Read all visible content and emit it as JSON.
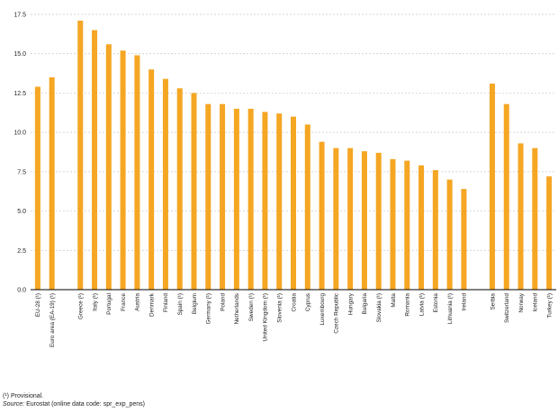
{
  "chart_data": {
    "type": "bar",
    "title": "",
    "xlabel": "",
    "ylabel": "",
    "ylim": [
      0,
      17.5
    ],
    "yticks": [
      "0.0",
      "2.5",
      "5.0",
      "7.5",
      "10.0",
      "12.5",
      "15.0",
      "17.5"
    ],
    "grid": "horizontal-dashed",
    "legend": "none",
    "categories": [
      "EU-28 (¹)",
      "Euro area (EA-19) (¹)",
      "",
      "Greece (¹)",
      "Italy (¹)",
      "Portugal",
      "France",
      "Austria",
      "Denmark",
      "Finland",
      "Spain (¹)",
      "Belgium",
      "Germany (¹)",
      "Poland",
      "Netherlands",
      "Sweden (¹)",
      "United Kingdom (¹)",
      "Slovenia (¹)",
      "Croatia",
      "Cyprus",
      "Luxembourg",
      "Czech Republic",
      "Hungary",
      "Bulgaria",
      "Slovakia (¹)",
      "Malta",
      "Romania",
      "Latvia (¹)",
      "Estonia",
      "Lithuania (¹)",
      "Ireland",
      "",
      "Serbia",
      "Switzerland",
      "Norway",
      "Iceland",
      "Turkey (¹)"
    ],
    "values": [
      12.9,
      13.5,
      null,
      17.1,
      16.5,
      15.6,
      15.2,
      14.9,
      14.0,
      13.4,
      12.8,
      12.5,
      11.8,
      11.8,
      11.5,
      11.5,
      11.3,
      11.2,
      11.0,
      10.5,
      9.4,
      9.0,
      9.0,
      8.8,
      8.7,
      8.3,
      8.2,
      7.9,
      7.6,
      7.0,
      6.4,
      null,
      13.1,
      11.8,
      9.3,
      9.0,
      7.2
    ],
    "bar_color": "#f5a623"
  },
  "footnotes": {
    "provisional": "(¹) Provisional.",
    "source_label": "Source:",
    "source_text": "Eurostat (online data code: spr_exp_pens)"
  }
}
